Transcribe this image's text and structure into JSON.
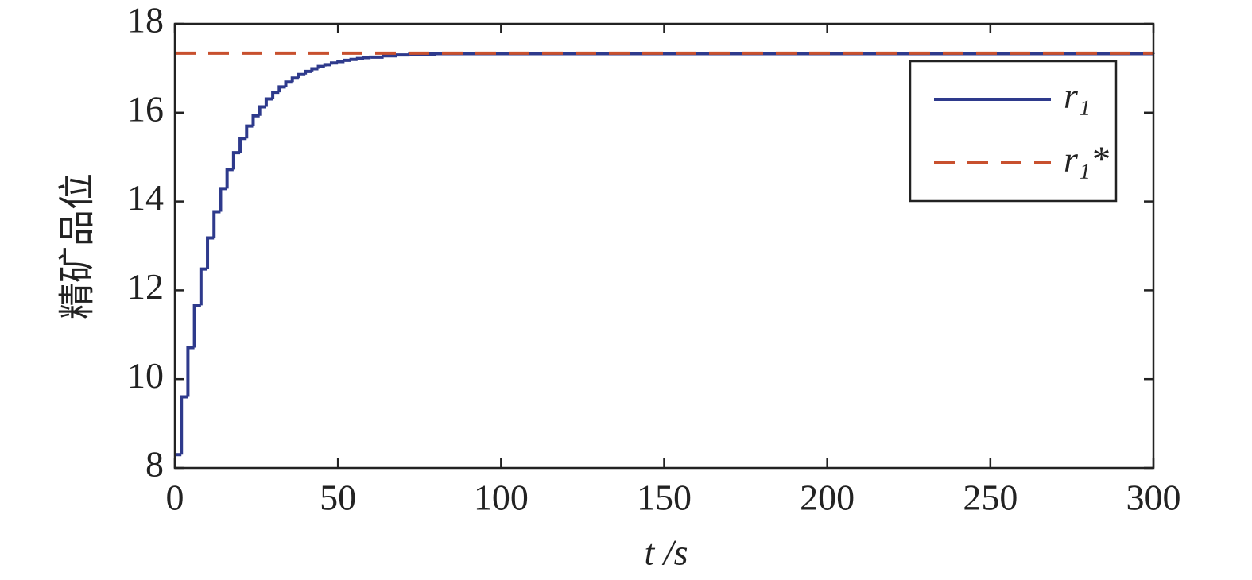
{
  "chart_data": {
    "type": "step",
    "xlabel": "t /s",
    "ylabel": "精矿品位",
    "xlim": [
      0,
      300
    ],
    "ylim": [
      8,
      18
    ],
    "xticks": [
      0,
      50,
      100,
      150,
      200,
      250,
      300
    ],
    "yticks": [
      8,
      10,
      12,
      14,
      16,
      18
    ],
    "legend": "upper right",
    "series": [
      {
        "name": "r₁",
        "color": "#2e3a8c",
        "style": "solid",
        "x": [
          0,
          2,
          4,
          6,
          8,
          10,
          12,
          14,
          16,
          18,
          20,
          22,
          24,
          26,
          28,
          30,
          32,
          34,
          36,
          38,
          40,
          42,
          44,
          46,
          48,
          50,
          52,
          54,
          56,
          58,
          60,
          64,
          68,
          72,
          80,
          300
        ],
        "values": [
          8.3,
          9.6,
          10.71,
          11.66,
          12.48,
          13.18,
          13.77,
          14.29,
          14.72,
          15.1,
          15.42,
          15.7,
          15.93,
          16.13,
          16.31,
          16.46,
          16.58,
          16.69,
          16.78,
          16.86,
          16.93,
          16.99,
          17.04,
          17.08,
          17.12,
          17.15,
          17.18,
          17.2,
          17.22,
          17.24,
          17.25,
          17.28,
          17.3,
          17.32,
          17.33,
          17.34
        ]
      },
      {
        "name": "r₁*",
        "color": "#c8502e",
        "style": "dashed",
        "x": [
          0,
          300
        ],
        "values": [
          17.34,
          17.34
        ]
      }
    ]
  }
}
